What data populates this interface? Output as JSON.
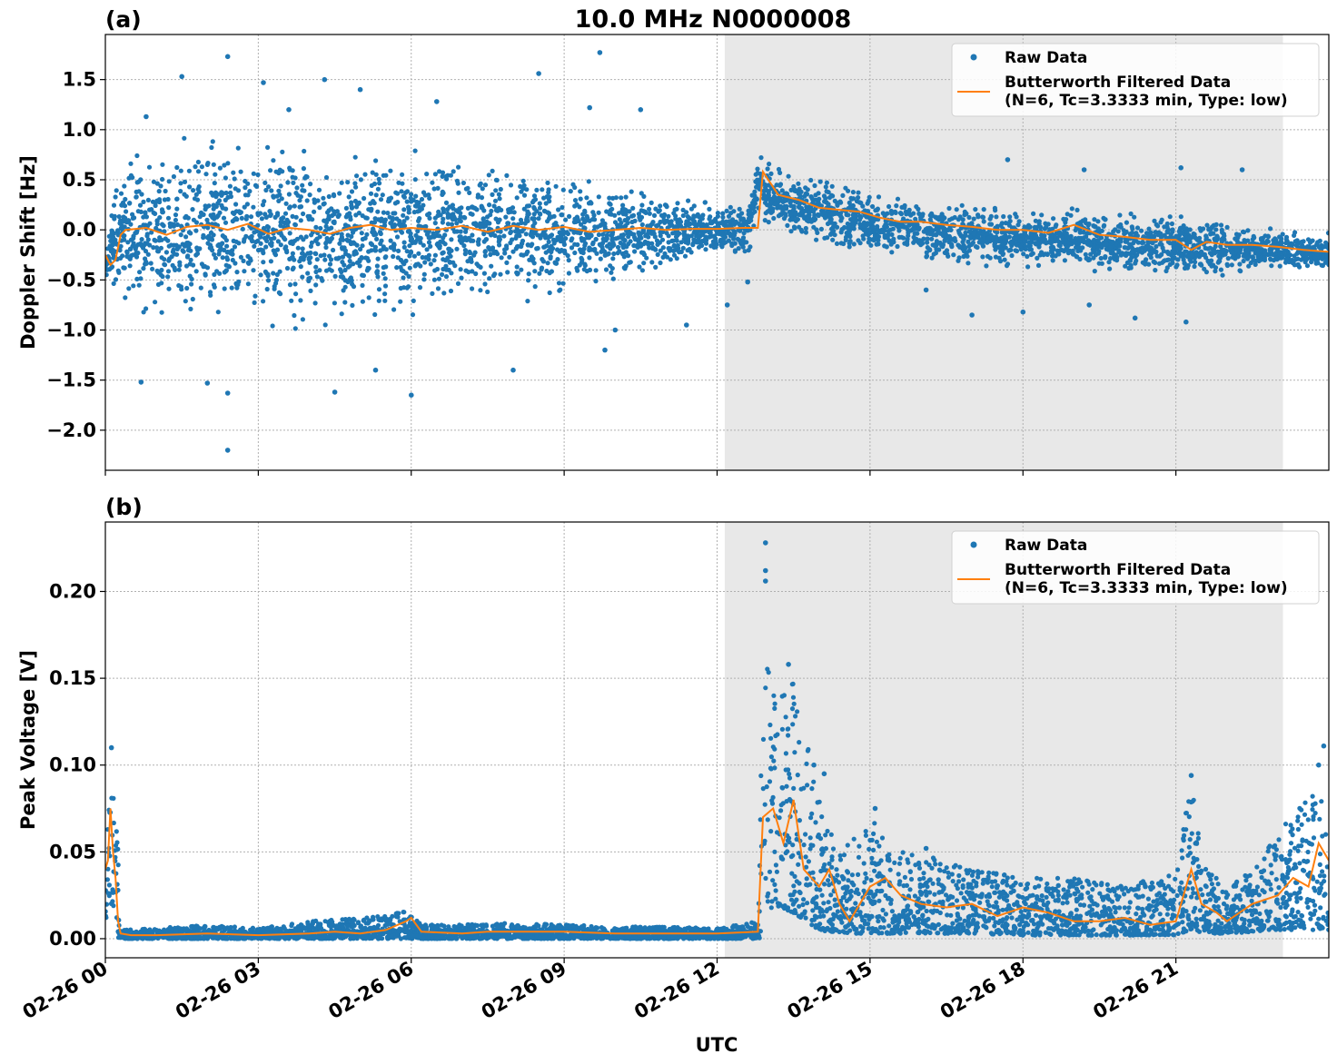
{
  "figure": {
    "title": "10.0 MHz N0000008",
    "xlabel": "UTC",
    "x_tick_labels": [
      "02-26 00",
      "02-26 03",
      "02-26 06",
      "02-26 09",
      "02-26 12",
      "02-26 15",
      "02-26 18",
      "02-26 21"
    ],
    "colors": {
      "raw": "#1f77b4",
      "filtered": "#ff7f0e",
      "shade": "#e8e8e8"
    }
  },
  "chart_data": [
    {
      "type": "scatter",
      "panel_label": "(a)",
      "ylabel": "Doppler Shift [Hz]",
      "x_unit": "hours since 02-26 00 UTC",
      "xlim": [
        0,
        24
      ],
      "ylim": [
        -2.4,
        1.95
      ],
      "yticks": [
        1.5,
        1.0,
        0.5,
        0.0,
        -0.5,
        -1.0,
        -1.5,
        -2.0
      ],
      "ytick_labels": [
        "1.5",
        "1.0",
        "0.5",
        "0.0",
        "−0.5",
        "−1.0",
        "−1.5",
        "−2.0"
      ],
      "xticks": [
        0,
        3,
        6,
        9,
        12,
        15,
        18,
        21
      ],
      "grid": true,
      "shaded_interval": [
        12.15,
        23.1
      ],
      "legend": {
        "placement": "top-right",
        "entries": [
          {
            "label": "Raw Data",
            "marker": "dot"
          },
          {
            "label": "Butterworth Filtered Data",
            "label2": "(N=6, Tc=3.3333 min, Type: low)",
            "marker": "line"
          }
        ]
      },
      "series": [
        {
          "name": "Raw Data",
          "style": "scatter",
          "envelope": {
            "x": [
              0,
              0.3,
              1,
              2,
              3,
              4,
              5,
              6,
              7,
              8,
              9,
              10,
              11,
              12,
              12.6,
              12.8,
              13,
              14,
              15,
              16,
              17,
              18,
              19,
              20,
              21,
              22,
              23,
              24
            ],
            "hi": [
              -0.1,
              0.8,
              1.0,
              1.1,
              1.0,
              1.0,
              0.9,
              0.9,
              0.8,
              0.8,
              0.6,
              0.5,
              0.4,
              0.3,
              0.3,
              0.85,
              0.7,
              0.55,
              0.45,
              0.35,
              0.3,
              0.25,
              0.25,
              0.2,
              0.2,
              0.1,
              0.05,
              0.0
            ],
            "lo": [
              -0.6,
              -0.8,
              -1.1,
              -1.1,
              -1.1,
              -1.1,
              -1.0,
              -1.0,
              -0.9,
              -0.8,
              -0.7,
              -0.6,
              -0.4,
              -0.3,
              -0.3,
              0.1,
              0.0,
              -0.2,
              -0.3,
              -0.35,
              -0.4,
              -0.45,
              -0.45,
              -0.5,
              -0.5,
              -0.5,
              -0.45,
              -0.45
            ]
          },
          "outliers": [
            [
              2.4,
              1.73
            ],
            [
              1.5,
              1.53
            ],
            [
              8.5,
              1.56
            ],
            [
              9.7,
              1.77
            ],
            [
              2.4,
              -2.2
            ],
            [
              2.4,
              -1.63
            ],
            [
              6.0,
              -1.65
            ],
            [
              0.8,
              1.13
            ],
            [
              3.1,
              1.47
            ],
            [
              4.3,
              1.5
            ],
            [
              6.5,
              1.28
            ],
            [
              9.5,
              1.22
            ],
            [
              10.5,
              1.2
            ],
            [
              2.0,
              -1.53
            ],
            [
              0.7,
              -1.52
            ],
            [
              5.3,
              -1.4
            ],
            [
              8.0,
              -1.4
            ],
            [
              9.8,
              -1.2
            ],
            [
              4.5,
              -1.62
            ],
            [
              12.6,
              -0.52
            ],
            [
              12.2,
              -0.75
            ],
            [
              17.7,
              0.7
            ],
            [
              19.2,
              0.6
            ],
            [
              21.1,
              0.62
            ],
            [
              22.3,
              0.6
            ],
            [
              17.0,
              -0.85
            ],
            [
              18.0,
              -0.82
            ],
            [
              19.3,
              -0.75
            ],
            [
              20.2,
              -0.88
            ],
            [
              21.2,
              -0.92
            ],
            [
              16.1,
              -0.6
            ],
            [
              10.0,
              -1.0
            ],
            [
              11.4,
              -0.95
            ],
            [
              3.6,
              1.2
            ],
            [
              5.0,
              1.4
            ]
          ]
        },
        {
          "name": "Butterworth Filtered Data",
          "style": "line",
          "x": [
            0,
            0.1,
            0.2,
            0.3,
            0.4,
            0.8,
            1.2,
            1.6,
            2.0,
            2.4,
            2.8,
            3.2,
            3.6,
            4.0,
            4.4,
            4.8,
            5.2,
            5.6,
            6.0,
            6.5,
            7.0,
            7.5,
            8.0,
            8.5,
            9.0,
            9.5,
            10.0,
            10.5,
            11.0,
            11.5,
            12.0,
            12.5,
            12.8,
            12.9,
            13.2,
            13.6,
            14.0,
            14.4,
            14.8,
            15.2,
            15.6,
            16.0,
            16.5,
            17.0,
            17.5,
            18.0,
            18.5,
            19.0,
            19.5,
            20.0,
            20.5,
            21.0,
            21.3,
            21.6,
            22.0,
            22.5,
            23.0,
            23.5,
            24.0
          ],
          "y": [
            -0.25,
            -0.35,
            -0.3,
            -0.05,
            0.0,
            0.02,
            -0.05,
            0.03,
            0.05,
            0.0,
            0.06,
            -0.04,
            0.02,
            0.0,
            -0.04,
            0.02,
            0.05,
            0.0,
            0.02,
            0.0,
            0.04,
            -0.02,
            0.04,
            0.0,
            0.03,
            -0.02,
            0.0,
            0.02,
            0.0,
            0.01,
            0.01,
            0.02,
            0.02,
            0.58,
            0.35,
            0.3,
            0.22,
            0.2,
            0.18,
            0.12,
            0.08,
            0.08,
            0.05,
            0.03,
            0.0,
            0.0,
            -0.03,
            0.05,
            -0.05,
            -0.07,
            -0.1,
            -0.1,
            -0.2,
            -0.12,
            -0.15,
            -0.15,
            -0.17,
            -0.2,
            -0.22
          ]
        }
      ]
    },
    {
      "type": "scatter",
      "panel_label": "(b)",
      "ylabel": "Peak Voltage [V]",
      "x_unit": "hours since 02-26 00 UTC",
      "xlim": [
        0,
        24
      ],
      "ylim": [
        -0.011,
        0.24
      ],
      "yticks": [
        0.0,
        0.05,
        0.1,
        0.15,
        0.2
      ],
      "ytick_labels": [
        "0.00",
        "0.05",
        "0.10",
        "0.15",
        "0.20"
      ],
      "xticks": [
        0,
        3,
        6,
        9,
        12,
        15,
        18,
        21
      ],
      "grid": true,
      "shaded_interval": [
        12.15,
        23.1
      ],
      "legend": {
        "placement": "top-right",
        "entries": [
          {
            "label": "Raw Data",
            "marker": "dot"
          },
          {
            "label": "Butterworth Filtered Data",
            "label2": "(N=6, Tc=3.3333 min, Type: low)",
            "marker": "line"
          }
        ]
      },
      "series": [
        {
          "name": "Raw Data",
          "style": "scatter",
          "envelope": {
            "x": [
              0,
              0.1,
              0.15,
              0.25,
              0.3,
              1,
              2,
              3,
              4,
              5,
              5.9,
              6.2,
              7,
              8,
              9,
              10,
              11,
              12,
              12.8,
              12.9,
              13.1,
              13.5,
              14,
              14.4,
              15,
              15.5,
              16,
              17,
              18,
              19,
              20,
              21,
              21.3,
              21.6,
              22,
              22.5,
              23,
              23.5,
              24
            ],
            "hi": [
              0.03,
              0.1,
              0.09,
              0.05,
              0.005,
              0.006,
              0.008,
              0.006,
              0.01,
              0.012,
              0.016,
              0.008,
              0.008,
              0.009,
              0.008,
              0.007,
              0.007,
              0.006,
              0.01,
              0.17,
              0.14,
              0.15,
              0.08,
              0.05,
              0.07,
              0.05,
              0.05,
              0.04,
              0.035,
              0.035,
              0.03,
              0.04,
              0.09,
              0.04,
              0.03,
              0.04,
              0.06,
              0.08,
              0.1
            ],
            "lo": [
              0.01,
              0.02,
              0.02,
              0.0,
              0.0,
              0.0,
              0.0,
              0.0,
              0.0,
              0.0,
              0.0,
              0.0,
              0.0,
              0.0,
              0.0,
              0.0,
              0.0,
              0.0,
              0.0,
              0.0,
              0.02,
              0.015,
              0.005,
              0.003,
              0.003,
              0.003,
              0.003,
              0.003,
              0.002,
              0.002,
              0.002,
              0.002,
              0.005,
              0.003,
              0.003,
              0.004,
              0.005,
              0.005,
              0.005
            ]
          },
          "outliers": [
            [
              12.95,
              0.228
            ],
            [
              12.95,
              0.212
            ],
            [
              12.95,
              0.206
            ],
            [
              13.4,
              0.158
            ],
            [
              13.9,
              0.1
            ],
            [
              14.1,
              0.095
            ],
            [
              21.3,
              0.094
            ],
            [
              23.9,
              0.111
            ],
            [
              15.1,
              0.075
            ],
            [
              0.12,
              0.11
            ],
            [
              23.8,
              0.1
            ],
            [
              16.1,
              0.052
            ],
            [
              20.4,
              0.03
            ]
          ]
        },
        {
          "name": "Butterworth Filtered Data",
          "style": "line",
          "x": [
            0,
            0.05,
            0.1,
            0.15,
            0.2,
            0.25,
            0.3,
            0.5,
            1,
            2,
            3,
            4,
            4.5,
            5,
            5.5,
            5.9,
            6.0,
            6.2,
            7,
            7.5,
            8,
            9,
            10,
            11,
            12,
            12.8,
            12.9,
            13.1,
            13.3,
            13.5,
            13.7,
            14,
            14.2,
            14.4,
            14.6,
            15,
            15.3,
            15.6,
            16,
            16.5,
            17,
            17.5,
            18,
            18.5,
            19,
            19.5,
            20,
            20.5,
            21,
            21.3,
            21.5,
            21.8,
            22,
            22.5,
            23,
            23.3,
            23.6,
            23.8,
            24
          ],
          "y": [
            0.04,
            0.045,
            0.075,
            0.05,
            0.035,
            0.01,
            0.003,
            0.002,
            0.002,
            0.003,
            0.002,
            0.003,
            0.004,
            0.003,
            0.005,
            0.01,
            0.012,
            0.004,
            0.003,
            0.004,
            0.004,
            0.004,
            0.003,
            0.003,
            0.003,
            0.004,
            0.07,
            0.075,
            0.055,
            0.08,
            0.04,
            0.03,
            0.04,
            0.02,
            0.01,
            0.03,
            0.035,
            0.025,
            0.02,
            0.018,
            0.02,
            0.013,
            0.018,
            0.015,
            0.01,
            0.01,
            0.012,
            0.008,
            0.01,
            0.04,
            0.02,
            0.015,
            0.01,
            0.02,
            0.025,
            0.035,
            0.03,
            0.055,
            0.045
          ]
        }
      ]
    }
  ]
}
